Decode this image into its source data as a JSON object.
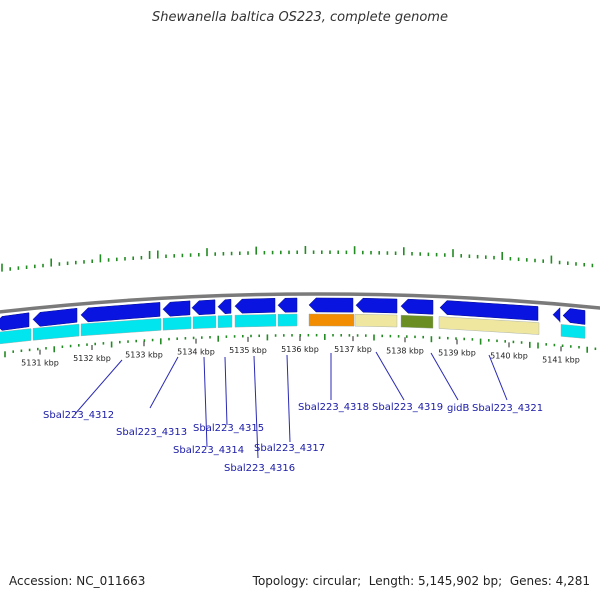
{
  "title": "Shewanella baltica OS223, complete genome",
  "footer": {
    "accession_label": "Accession:",
    "accession": "NC_011663",
    "topology_label": "Topology:",
    "topology": "circular",
    "length_label": "Length:",
    "length": "5,145,902 bp",
    "genes_label": "Genes:",
    "genes": "4,281"
  },
  "colors": {
    "backbone": "#7a7a7a",
    "strand_gene": "#0a14e0",
    "cds_lane": "#00e5ee",
    "gc_tick": "#228b22",
    "label_line": "#2a2ab5",
    "orange": "#f28c00",
    "khaki": "#efe6a0",
    "olive": "#6b8e23"
  },
  "ruler": {
    "unit": "kbp",
    "ticks": [
      {
        "kbp": 5131,
        "label": "5131 kbp"
      },
      {
        "kbp": 5132,
        "label": "5132 kbp"
      },
      {
        "kbp": 5133,
        "label": "5133 kbp"
      },
      {
        "kbp": 5134,
        "label": "5134 kbp"
      },
      {
        "kbp": 5135,
        "label": "5135 kbp"
      },
      {
        "kbp": 5136,
        "label": "5136 kbp"
      },
      {
        "kbp": 5137,
        "label": "5137 kbp"
      },
      {
        "kbp": 5138,
        "label": "5138 kbp"
      },
      {
        "kbp": 5139,
        "label": "5139 kbp"
      },
      {
        "kbp": 5140,
        "label": "5140 kbp"
      },
      {
        "kbp": 5141,
        "label": "5141 kbp"
      }
    ]
  },
  "genes": [
    {
      "name": "Sbal223_4312"
    },
    {
      "name": "Sbal223_4313"
    },
    {
      "name": "Sbal223_4314"
    },
    {
      "name": "Sbal223_4315"
    },
    {
      "name": "Sbal223_4316"
    },
    {
      "name": "Sbal223_4317"
    },
    {
      "name": "Sbal223_4318"
    },
    {
      "name": "Sbal223_4319"
    },
    {
      "name": "gidB"
    },
    {
      "name": "Sbal223_4321"
    }
  ]
}
